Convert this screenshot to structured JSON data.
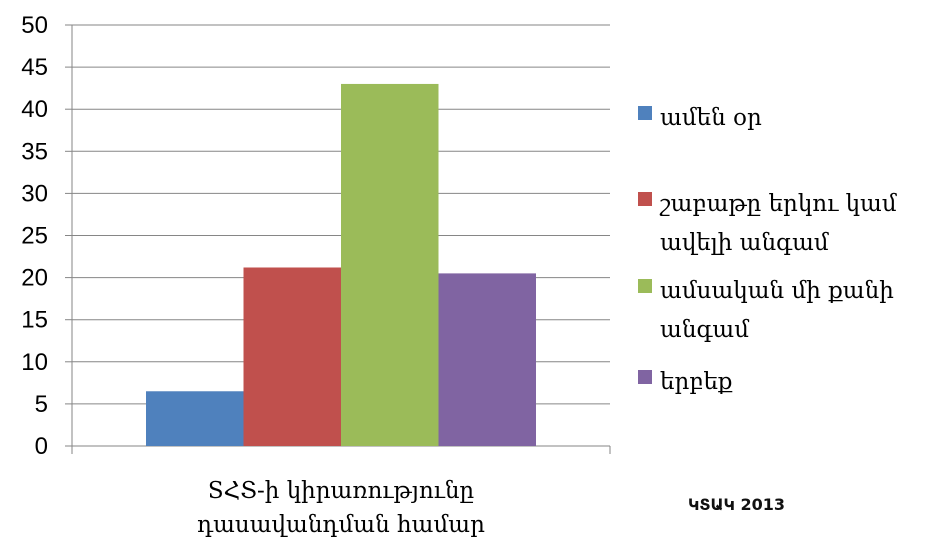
{
  "chart_data": {
    "type": "bar",
    "categories": [
      "SՀՏ-ի կիրառությունը դասավանդման համար"
    ],
    "category_lines": [
      "SՀՏ-ի կիրառությունը",
      "դասավանդման համար"
    ],
    "series": [
      {
        "name": "ամեն օր",
        "values": [
          6.5
        ],
        "color": "#4F81BD"
      },
      {
        "name": "շաբաթը երկու կամ ավելի անգամ",
        "values": [
          21.2
        ],
        "color": "#C0504D"
      },
      {
        "name": "ամսական մի քանի անգամ",
        "values": [
          43
        ],
        "color": "#9BBB59"
      },
      {
        "name": "երբեք",
        "values": [
          20.5
        ],
        "color": "#8064A2"
      }
    ],
    "legend_lines": [
      [
        "ամեն օր"
      ],
      [
        "շաբաթը երկու կամ",
        "ավելի անգամ"
      ],
      [
        "ամսական մի քանի",
        "անգամ"
      ],
      [
        "երբեք"
      ]
    ],
    "ylim": [
      0,
      50
    ],
    "yticks": [
      0,
      5,
      10,
      15,
      20,
      25,
      30,
      35,
      40,
      45,
      50
    ],
    "grid": true,
    "legend_position": "right",
    "title": "",
    "xlabel": "",
    "ylabel": ""
  },
  "source_note": "ԿՏԱԿ 2013"
}
